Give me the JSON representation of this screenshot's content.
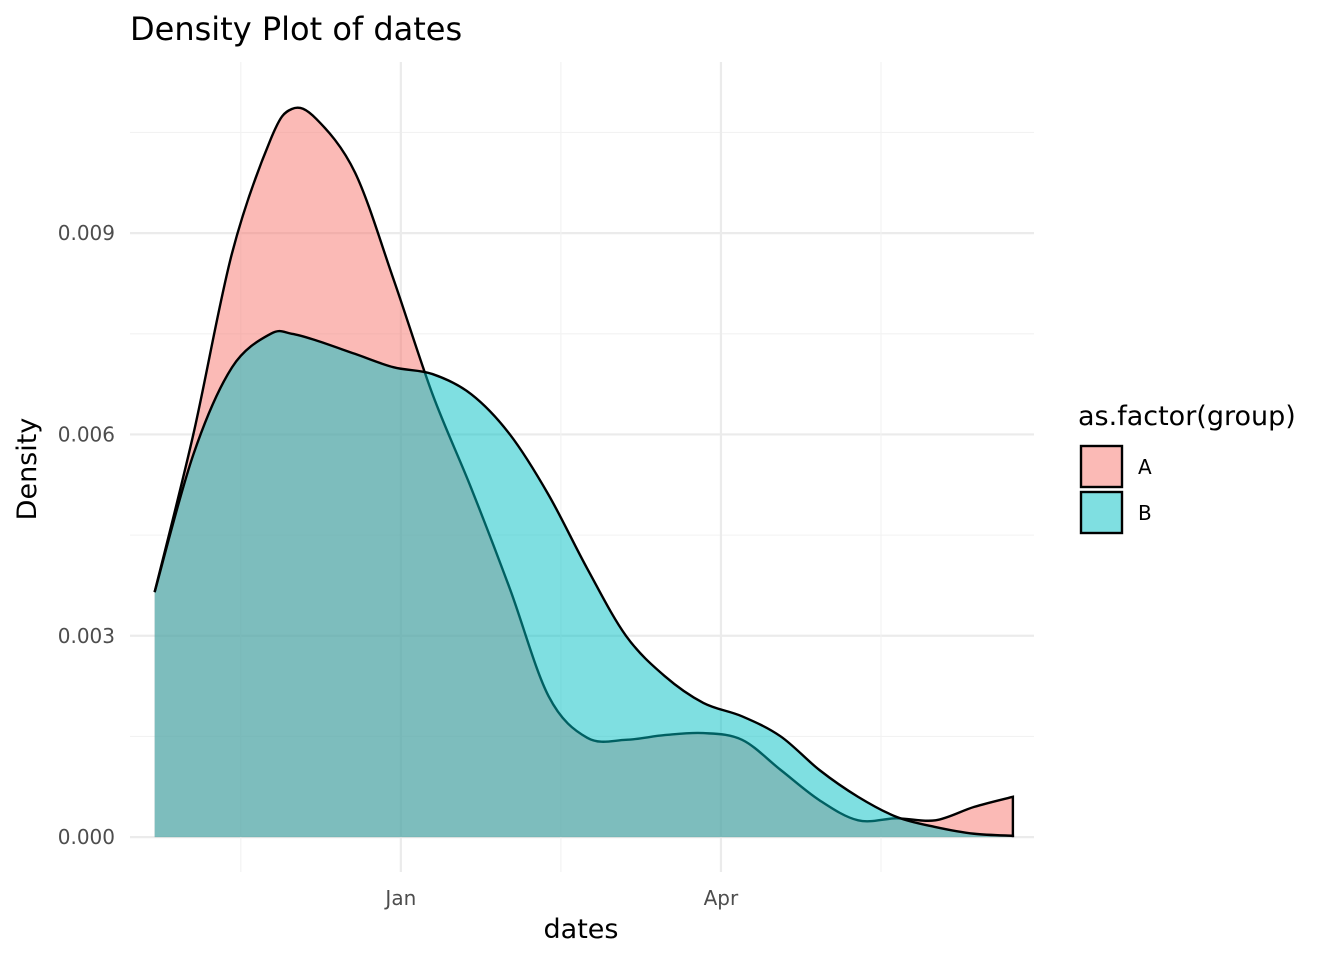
{
  "chart_data": {
    "type": "area",
    "title": "Density Plot of dates",
    "xlabel": "dates",
    "ylabel": "Density",
    "x_ticks": [
      {
        "label": "Jan",
        "date": "2024-01-01"
      },
      {
        "label": "Apr",
        "date": "2024-04-01"
      }
    ],
    "y_ticks": [
      "0.000",
      "0.003",
      "0.006",
      "0.009"
    ],
    "xlim": [
      "2023-10-16",
      "2024-06-29"
    ],
    "ylim": [
      -0.00052,
      0.01155
    ],
    "grid": true,
    "legend": {
      "title": "as.factor(group)",
      "position": "right"
    },
    "series": [
      {
        "name": "A",
        "color": "#F8766D",
        "x": [
          "2023-10-23",
          "2023-11-03",
          "2023-11-14",
          "2023-11-25",
          "2023-12-01",
          "2023-12-08",
          "2023-12-19",
          "2023-12-30",
          "2024-01-10",
          "2024-01-21",
          "2024-02-01",
          "2024-02-12",
          "2024-02-23",
          "2024-03-05",
          "2024-03-16",
          "2024-03-27",
          "2024-04-07",
          "2024-04-18",
          "2024-04-29",
          "2024-05-10",
          "2024-05-21",
          "2024-06-01",
          "2024-06-12",
          "2024-06-23"
        ],
        "y": [
          0.00365,
          0.006,
          0.0087,
          0.0104,
          0.01085,
          0.0107,
          0.0099,
          0.0083,
          0.0066,
          0.0052,
          0.0037,
          0.0021,
          0.00148,
          0.00145,
          0.00152,
          0.00155,
          0.00145,
          0.001,
          0.00055,
          0.00025,
          0.00028,
          0.00025,
          0.00045,
          0.0006
        ]
      },
      {
        "name": "B",
        "color": "#00BFC4",
        "x": [
          "2023-10-23",
          "2023-11-03",
          "2023-11-14",
          "2023-11-25",
          "2023-12-01",
          "2023-12-08",
          "2023-12-19",
          "2023-12-30",
          "2024-01-10",
          "2024-01-21",
          "2024-02-01",
          "2024-02-12",
          "2024-02-23",
          "2024-03-05",
          "2024-03-16",
          "2024-03-27",
          "2024-04-07",
          "2024-04-18",
          "2024-04-29",
          "2024-05-10",
          "2024-05-21",
          "2024-06-01",
          "2024-06-12",
          "2024-06-23"
        ],
        "y": [
          0.00365,
          0.0057,
          0.007,
          0.0075,
          0.0075,
          0.0074,
          0.0072,
          0.007,
          0.0069,
          0.0066,
          0.006,
          0.0051,
          0.004,
          0.003,
          0.0024,
          0.002,
          0.0018,
          0.0015,
          0.001,
          0.0006,
          0.0003,
          0.00015,
          5e-05,
          2e-05
        ]
      }
    ]
  }
}
